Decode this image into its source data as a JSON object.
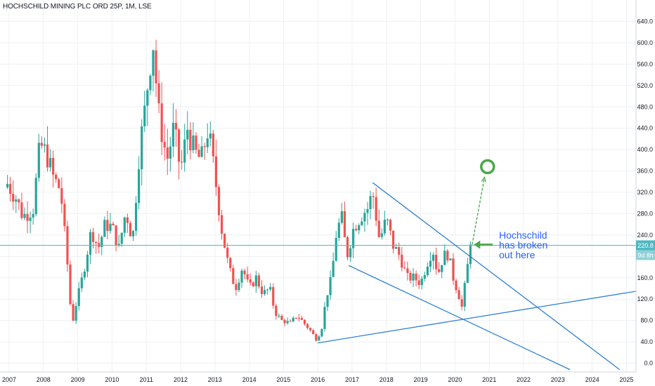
{
  "header": {
    "title": "HOCHSCHILD MINING PLC ORD 25P, 1M, LSE"
  },
  "colors": {
    "up": "#26a69a",
    "down": "#ef5350",
    "trendline": "#2f7fd3",
    "marker": "#4aa84a",
    "price_line": "#4fb8c2",
    "annotation": "#2962ff",
    "grid": "#eef0f3"
  },
  "chart_data": {
    "type": "candlestick",
    "title": "HOCHSCHILD MINING PLC ORD 25P, 1M, LSE",
    "x_ticks": [
      "2007",
      "2008",
      "2009",
      "2010",
      "2011",
      "2012",
      "2013",
      "2014",
      "2015",
      "2016",
      "2017",
      "2018",
      "2019",
      "2020",
      "2021",
      "2022",
      "2023",
      "2024",
      "2025"
    ],
    "y_ticks": [
      "0.0",
      "40.0",
      "80.0",
      "120.0",
      "160.0",
      "200.0",
      "240.0",
      "280.0",
      "320.0",
      "360.0",
      "400.0",
      "440.0",
      "480.0",
      "520.0",
      "560.0",
      "600.0",
      "640.0"
    ],
    "ylim": [
      -12,
      665
    ],
    "grid": true,
    "close_path": [
      [
        2006.95,
        336
      ],
      [
        2007.2,
        310
      ],
      [
        2007.4,
        275
      ],
      [
        2007.7,
        290
      ],
      [
        2007.9,
        410
      ],
      [
        2008.1,
        390
      ],
      [
        2008.3,
        345
      ],
      [
        2008.5,
        325
      ],
      [
        2008.7,
        185
      ],
      [
        2008.83,
        70
      ],
      [
        2008.95,
        110
      ],
      [
        2009.15,
        165
      ],
      [
        2009.4,
        250
      ],
      [
        2009.6,
        215
      ],
      [
        2009.8,
        260
      ],
      [
        2010.0,
        255
      ],
      [
        2010.2,
        215
      ],
      [
        2010.4,
        285
      ],
      [
        2010.6,
        230
      ],
      [
        2010.8,
        400
      ],
      [
        2010.95,
        470
      ],
      [
        2011.1,
        560
      ],
      [
        2011.2,
        600
      ],
      [
        2011.35,
        470
      ],
      [
        2011.6,
        380
      ],
      [
        2011.8,
        440
      ],
      [
        2012.0,
        360
      ],
      [
        2012.2,
        440
      ],
      [
        2012.4,
        395
      ],
      [
        2012.6,
        380
      ],
      [
        2012.8,
        440
      ],
      [
        2013.0,
        350
      ],
      [
        2013.2,
        250
      ],
      [
        2013.4,
        180
      ],
      [
        2013.6,
        140
      ],
      [
        2013.8,
        180
      ],
      [
        2014.0,
        140
      ],
      [
        2014.2,
        160
      ],
      [
        2014.4,
        130
      ],
      [
        2014.6,
        140
      ],
      [
        2014.75,
        95
      ],
      [
        2014.95,
        80
      ],
      [
        2015.2,
        75
      ],
      [
        2015.4,
        90
      ],
      [
        2015.6,
        75
      ],
      [
        2015.8,
        60
      ],
      [
        2015.95,
        45
      ],
      [
        2016.1,
        60
      ],
      [
        2016.25,
        125
      ],
      [
        2016.4,
        160
      ],
      [
        2016.55,
        250
      ],
      [
        2016.7,
        270
      ],
      [
        2016.85,
        200
      ],
      [
        2017.05,
        255
      ],
      [
        2017.3,
        280
      ],
      [
        2017.45,
        290
      ],
      [
        2017.6,
        320
      ],
      [
        2017.8,
        230
      ],
      [
        2018.0,
        270
      ],
      [
        2018.2,
        220
      ],
      [
        2018.4,
        200
      ],
      [
        2018.6,
        160
      ],
      [
        2018.8,
        160
      ],
      [
        2019.0,
        150
      ],
      [
        2019.2,
        190
      ],
      [
        2019.35,
        215
      ],
      [
        2019.5,
        165
      ],
      [
        2019.65,
        200
      ],
      [
        2019.8,
        205
      ],
      [
        2019.95,
        160
      ],
      [
        2020.1,
        130
      ],
      [
        2020.2,
        105
      ],
      [
        2020.3,
        150
      ],
      [
        2020.45,
        222
      ]
    ],
    "annotations": [
      {
        "text_lines": [
          "Hochschild",
          "has broken",
          "out here"
        ]
      }
    ],
    "current_price": {
      "label": "220.8",
      "countdown": "9d 8h",
      "value": 220.8
    },
    "trendlines": [
      {
        "from": [
          2017.6,
          338
        ],
        "to": [
          2024.8,
          -12
        ]
      },
      {
        "from": [
          2016.9,
          183
        ],
        "to": [
          2023.35,
          -12
        ]
      },
      {
        "from": [
          2016.0,
          38
        ],
        "to": [
          2025.5,
          137
        ]
      }
    ],
    "target_marker": {
      "at": [
        2020.95,
        368
      ],
      "arrow_from": [
        2020.5,
        222
      ],
      "arrow_to": [
        2020.86,
        348
      ]
    },
    "breakout_arrow": {
      "from": [
        2021.1,
        222
      ],
      "to": [
        2020.55,
        222
      ]
    }
  }
}
